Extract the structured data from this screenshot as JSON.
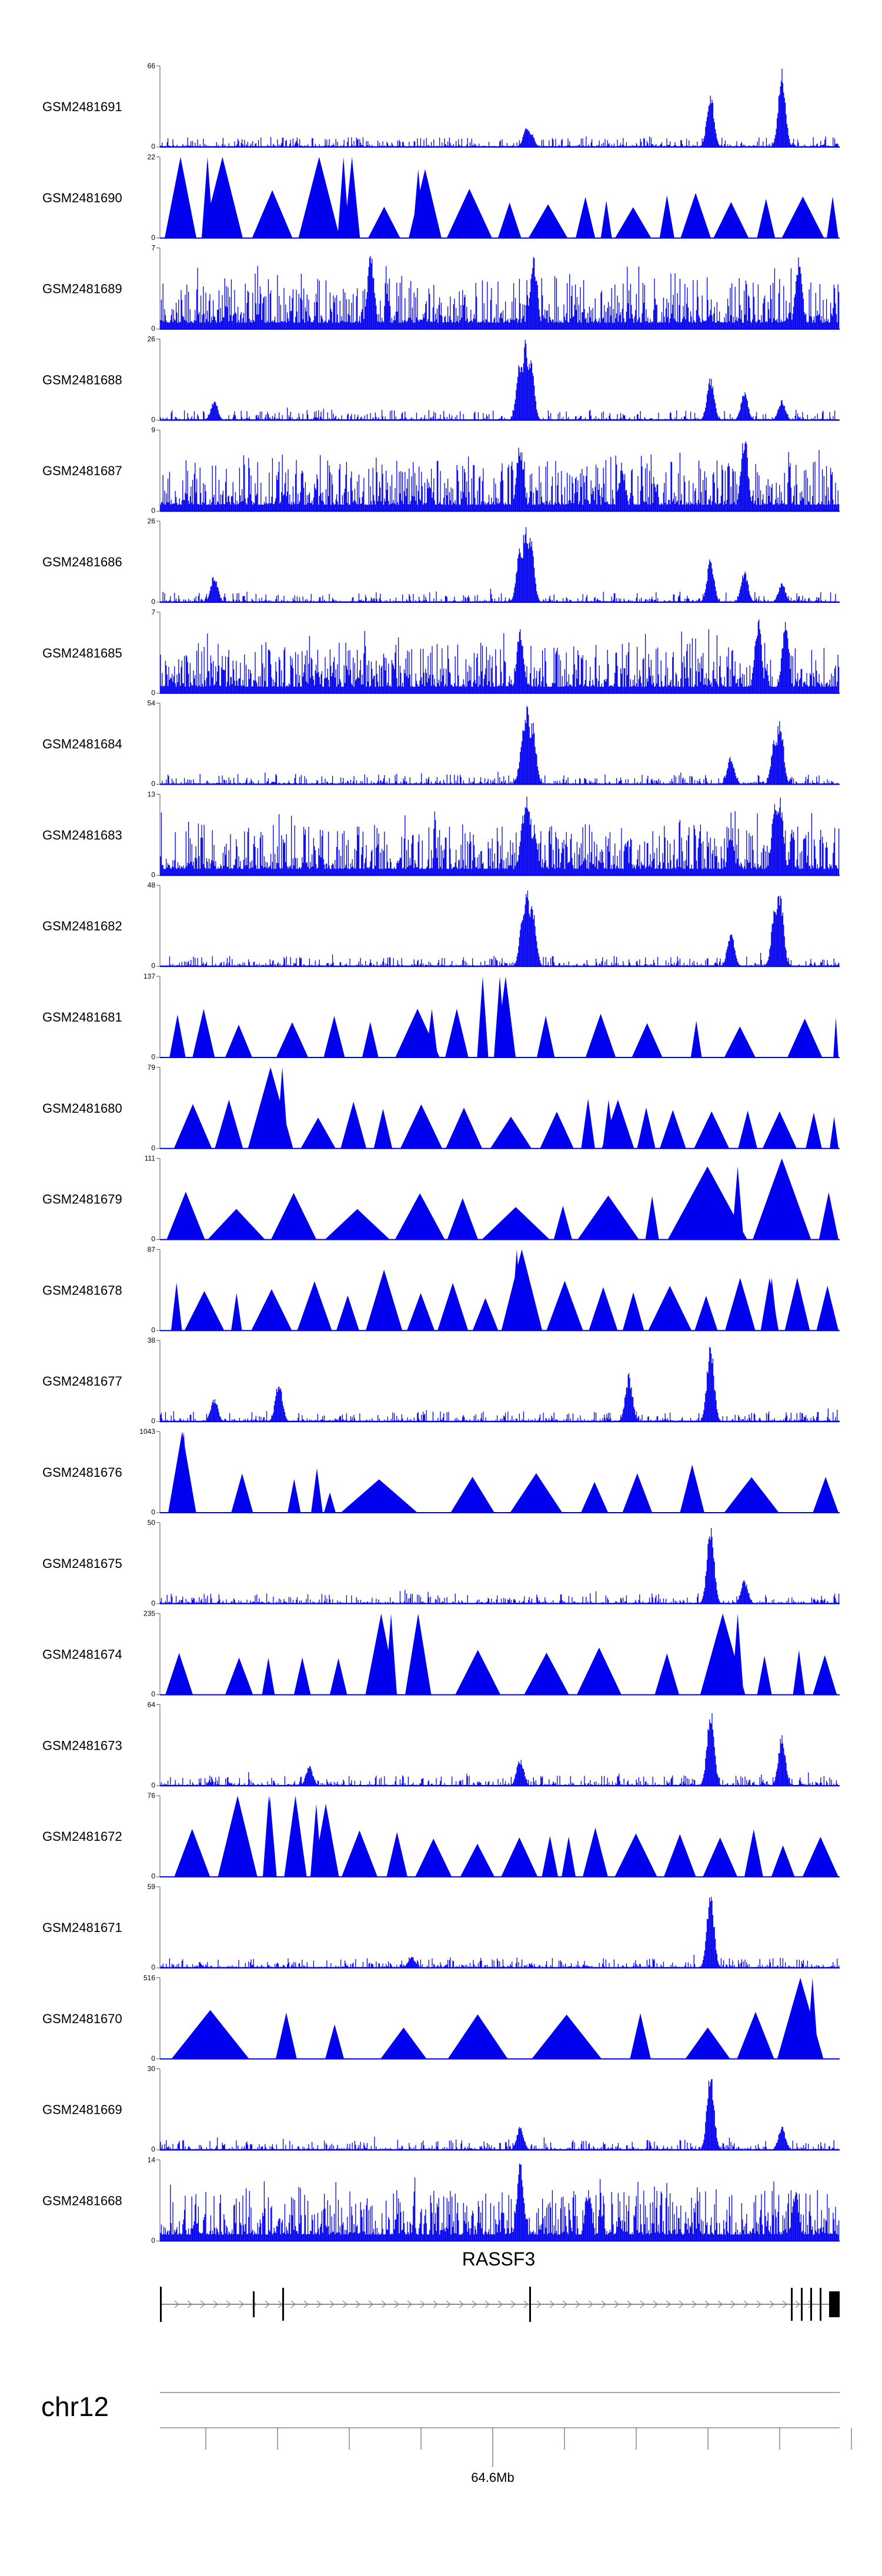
{
  "chart_data": {
    "type": "area",
    "title": "",
    "color": "#0000ee",
    "gene": "RASSF3",
    "chromosome": "chr12",
    "position_label": "64.6Mb",
    "tracks": [
      {
        "name": "GSM2481691",
        "max": "66",
        "min": "0",
        "style": "spiky",
        "peaks": [
          [
            0.54,
            0.28
          ],
          [
            0.545,
            0.2
          ],
          [
            0.81,
            0.7
          ],
          [
            0.915,
            1.0
          ]
        ]
      },
      {
        "name": "GSM2481690",
        "max": "22",
        "min": "0",
        "style": "triangles",
        "peaks": [
          [
            0.07,
            1.0
          ],
          [
            0.27,
            1.0
          ],
          [
            0.38,
            0.85
          ]
        ]
      },
      {
        "name": "GSM2481689",
        "max": "7",
        "min": "0",
        "style": "dense",
        "peaks": [
          [
            0.31,
            0.95
          ],
          [
            0.55,
            0.9
          ],
          [
            0.94,
            0.9
          ]
        ]
      },
      {
        "name": "GSM2481688",
        "max": "26",
        "min": "0",
        "style": "spiky",
        "peaks": [
          [
            0.08,
            0.25
          ],
          [
            0.53,
            0.75
          ],
          [
            0.538,
            1.0
          ],
          [
            0.545,
            0.8
          ],
          [
            0.81,
            0.55
          ],
          [
            0.86,
            0.35
          ],
          [
            0.915,
            0.25
          ]
        ]
      },
      {
        "name": "GSM2481687",
        "max": "9",
        "min": "0",
        "style": "dense",
        "peaks": [
          [
            0.53,
            0.85
          ],
          [
            0.86,
            1.0
          ],
          [
            0.68,
            0.55
          ]
        ]
      },
      {
        "name": "GSM2481686",
        "max": "26",
        "min": "0",
        "style": "spiky",
        "peaks": [
          [
            0.08,
            0.35
          ],
          [
            0.53,
            0.7
          ],
          [
            0.538,
            1.0
          ],
          [
            0.545,
            0.85
          ],
          [
            0.81,
            0.55
          ],
          [
            0.86,
            0.4
          ],
          [
            0.915,
            0.25
          ]
        ]
      },
      {
        "name": "GSM2481685",
        "max": "7",
        "min": "0",
        "style": "dense",
        "peaks": [
          [
            0.53,
            0.85
          ],
          [
            0.88,
            0.95
          ],
          [
            0.92,
            0.9
          ]
        ]
      },
      {
        "name": "GSM2481684",
        "max": "54",
        "min": "0",
        "style": "spiky",
        "peaks": [
          [
            0.535,
            0.7
          ],
          [
            0.54,
            1.0
          ],
          [
            0.548,
            0.8
          ],
          [
            0.84,
            0.35
          ],
          [
            0.905,
            0.6
          ],
          [
            0.912,
            0.85
          ]
        ]
      },
      {
        "name": "GSM2481683",
        "max": "13",
        "min": "0",
        "style": "dense",
        "peaks": [
          [
            0.535,
            0.8
          ],
          [
            0.54,
            1.0
          ],
          [
            0.55,
            0.6
          ],
          [
            0.84,
            0.5
          ],
          [
            0.905,
            0.9
          ],
          [
            0.912,
            1.0
          ]
        ]
      },
      {
        "name": "GSM2481682",
        "max": "48",
        "min": "0",
        "style": "spiky",
        "peaks": [
          [
            0.535,
            0.75
          ],
          [
            0.54,
            1.0
          ],
          [
            0.548,
            0.8
          ],
          [
            0.84,
            0.45
          ],
          [
            0.905,
            0.75
          ],
          [
            0.912,
            1.0
          ]
        ]
      },
      {
        "name": "GSM2481681",
        "max": "137",
        "min": "0",
        "style": "triangles",
        "peaks": [
          [
            0.5,
            1.0
          ],
          [
            0.4,
            0.6
          ]
        ]
      },
      {
        "name": "GSM2481680",
        "max": "79",
        "min": "0",
        "style": "triangles",
        "peaks": [
          [
            0.18,
            1.0
          ],
          [
            0.66,
            0.6
          ]
        ]
      },
      {
        "name": "GSM2481679",
        "max": "111",
        "min": "0",
        "style": "triangles",
        "peaks": [
          [
            0.85,
            0.9
          ],
          [
            0.915,
            1.0
          ]
        ]
      },
      {
        "name": "GSM2481678",
        "max": "87",
        "min": "0",
        "style": "triangles",
        "peaks": [
          [
            0.33,
            0.75
          ],
          [
            0.525,
            1.0
          ],
          [
            0.9,
            0.65
          ]
        ]
      },
      {
        "name": "GSM2481677",
        "max": "38",
        "min": "0",
        "style": "spiky",
        "peaks": [
          [
            0.08,
            0.3
          ],
          [
            0.175,
            0.5
          ],
          [
            0.69,
            0.6
          ],
          [
            0.81,
            1.0
          ]
        ]
      },
      {
        "name": "GSM2481676",
        "max": "1043",
        "min": "0",
        "style": "triangles",
        "peaks": [
          [
            0.035,
            1.0
          ],
          [
            0.25,
            0.25
          ]
        ]
      },
      {
        "name": "GSM2481675",
        "max": "50",
        "min": "0",
        "style": "spiky",
        "peaks": [
          [
            0.81,
            1.0
          ],
          [
            0.86,
            0.3
          ]
        ]
      },
      {
        "name": "GSM2481674",
        "max": "235",
        "min": "0",
        "style": "triangles",
        "peaks": [
          [
            0.34,
            1.0
          ],
          [
            0.85,
            1.0
          ]
        ]
      },
      {
        "name": "GSM2481673",
        "max": "64",
        "min": "0",
        "style": "spiky",
        "peaks": [
          [
            0.22,
            0.25
          ],
          [
            0.53,
            0.35
          ],
          [
            0.81,
            1.0
          ],
          [
            0.915,
            0.65
          ]
        ]
      },
      {
        "name": "GSM2481672",
        "max": "76",
        "min": "0",
        "style": "triangles",
        "peaks": [
          [
            0.16,
            1.0
          ],
          [
            0.23,
            0.9
          ]
        ]
      },
      {
        "name": "GSM2481671",
        "max": "59",
        "min": "0",
        "style": "spiky",
        "peaks": [
          [
            0.81,
            1.0
          ],
          [
            0.37,
            0.15
          ]
        ]
      },
      {
        "name": "GSM2481670",
        "max": "516",
        "min": "0",
        "style": "triangles",
        "peaks": [
          [
            0.96,
            1.0
          ]
        ]
      },
      {
        "name": "GSM2481669",
        "max": "30",
        "min": "0",
        "style": "spiky",
        "peaks": [
          [
            0.53,
            0.3
          ],
          [
            0.81,
            1.0
          ],
          [
            0.915,
            0.3
          ]
        ]
      },
      {
        "name": "GSM2481668",
        "max": "14",
        "min": "0",
        "style": "dense",
        "peaks": [
          [
            0.53,
            1.0
          ],
          [
            0.63,
            0.65
          ],
          [
            0.935,
            0.65
          ]
        ]
      }
    ]
  }
}
